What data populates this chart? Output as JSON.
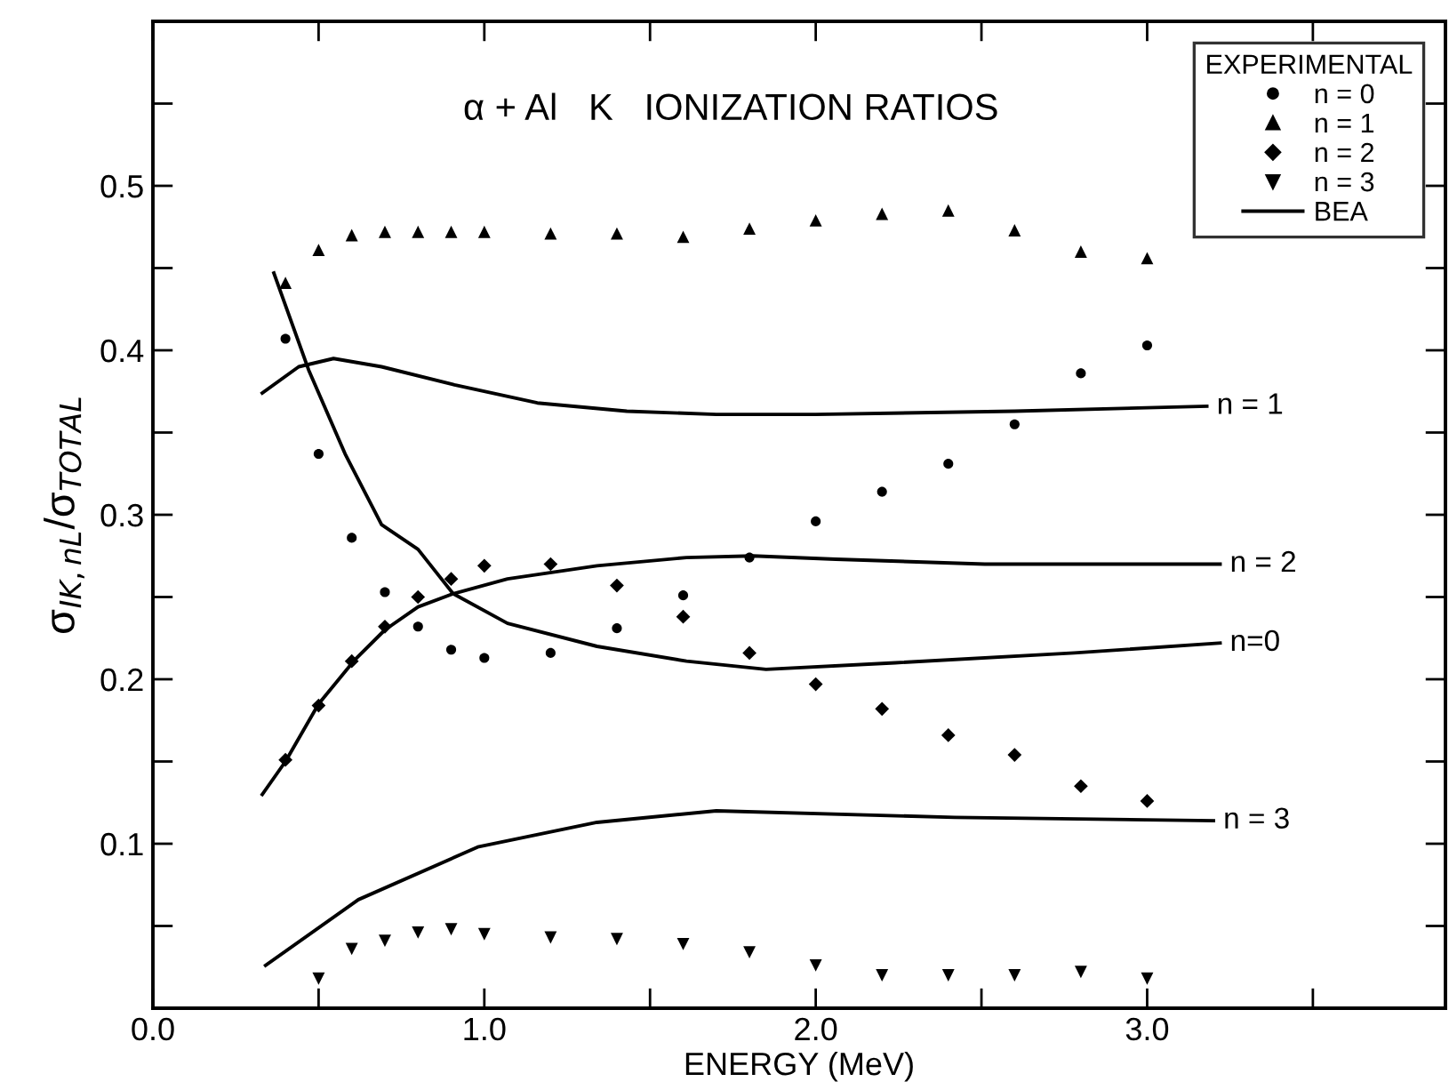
{
  "chart_data": {
    "type": "scatter",
    "title": "α + Al   K   IONIZATION RATIOS",
    "xlabel": "ENERGY (MeV)",
    "ylabel": "σ$_{IK,nL}$/σ$_{TOTAL}$",
    "legend_title": "EXPERIMENTAL",
    "xlim": [
      0,
      3.9
    ],
    "ylim": [
      0,
      0.6
    ],
    "xticks": [
      {
        "value": 0,
        "label": "0.0"
      },
      {
        "value": 0.5,
        "label": null
      },
      {
        "value": 1,
        "label": "1.0"
      },
      {
        "value": 1.5,
        "label": null
      },
      {
        "value": 2,
        "label": "2.0"
      },
      {
        "value": 2.5,
        "label": null
      },
      {
        "value": 3,
        "label": "3.0"
      },
      {
        "value": 3.5,
        "label": null
      }
    ],
    "yticks": [
      {
        "value": 0.05,
        "label": null
      },
      0.1,
      {
        "value": 0.15,
        "label": null
      },
      0.2,
      {
        "value": 0.25,
        "label": null
      },
      0.3,
      {
        "value": 0.35,
        "label": null
      },
      0.4,
      {
        "value": 0.45,
        "label": null
      },
      0.5,
      {
        "value": 0.55,
        "label": null
      }
    ],
    "grid": false,
    "legend": "top right",
    "series": [
      {
        "name": "n = 0",
        "marker": "circle",
        "color": "#000000",
        "x": [
          0.4,
          0.5,
          0.6,
          0.7,
          0.8,
          0.9,
          1.0,
          1.2,
          1.4,
          1.6,
          1.8,
          2.0,
          2.2,
          2.4,
          2.6,
          2.8,
          3.0
        ],
        "values": [
          0.407,
          0.337,
          0.286,
          0.253,
          0.232,
          0.218,
          0.213,
          0.216,
          0.231,
          0.251,
          0.274,
          0.296,
          0.314,
          0.331,
          0.355,
          0.386,
          0.403
        ]
      },
      {
        "name": "n = 1",
        "marker": "triangle",
        "color": "#000000",
        "x": [
          0.4,
          0.5,
          0.6,
          0.7,
          0.8,
          0.9,
          1.0,
          1.2,
          1.4,
          1.6,
          1.8,
          2.0,
          2.2,
          2.4,
          2.6,
          2.8,
          3.0
        ],
        "values": [
          0.441,
          0.461,
          0.47,
          0.472,
          0.472,
          0.472,
          0.472,
          0.471,
          0.471,
          0.469,
          0.474,
          0.479,
          0.483,
          0.485,
          0.473,
          0.46,
          0.456
        ]
      },
      {
        "name": "n = 2",
        "marker": "diamond",
        "color": "#000000",
        "x": [
          0.4,
          0.5,
          0.6,
          0.7,
          0.8,
          0.9,
          1.0,
          1.2,
          1.4,
          1.6,
          1.8,
          2.0,
          2.2,
          2.4,
          2.6,
          2.8,
          3.0
        ],
        "values": [
          0.151,
          0.184,
          0.211,
          0.232,
          0.25,
          0.261,
          0.269,
          0.27,
          0.257,
          0.238,
          0.216,
          0.197,
          0.182,
          0.166,
          0.154,
          0.135,
          0.126
        ]
      },
      {
        "name": "n = 3",
        "marker": "triangle_down",
        "color": "#000000",
        "x": [
          0.5,
          0.6,
          0.7,
          0.8,
          0.9,
          1.0,
          1.2,
          1.4,
          1.6,
          1.8,
          2.0,
          2.2,
          2.4,
          2.6,
          2.8,
          3.0
        ],
        "values": [
          0.018,
          0.036,
          0.041,
          0.046,
          0.048,
          0.045,
          0.043,
          0.042,
          0.039,
          0.034,
          0.026,
          0.02,
          0.02,
          0.02,
          0.022,
          0.018
        ]
      },
      {
        "name": "BEA",
        "type": "line",
        "marker": "none",
        "line_style": "solid",
        "color": "#000000",
        "x": [
          0.33,
          0.44,
          0.545,
          0.69,
          0.91,
          1.16,
          1.43,
          1.7,
          2.0,
          2.6,
          3.18
        ],
        "values": [
          0.374,
          0.39,
          0.395,
          0.39,
          0.379,
          0.368,
          0.363,
          0.361,
          0.361,
          0.363,
          0.366
        ]
      },
      {
        "type": "line",
        "marker": "none",
        "line_style": "solid",
        "color": "#000000",
        "x": [
          0.365,
          0.47,
          0.58,
          0.69,
          0.8,
          0.906,
          1.07,
          1.34,
          1.61,
          1.85,
          2.24,
          2.78,
          3.22
        ],
        "values": [
          0.447,
          0.388,
          0.337,
          0.294,
          0.279,
          0.252,
          0.234,
          0.22,
          0.211,
          0.206,
          0.21,
          0.216,
          0.222
        ]
      },
      {
        "type": "line",
        "marker": "none",
        "line_style": "solid",
        "color": "#000000",
        "x": [
          0.33,
          0.4,
          0.5,
          0.61,
          0.7,
          0.8,
          0.906,
          1.07,
          1.34,
          1.61,
          1.81,
          2.06,
          2.51,
          3.22
        ],
        "values": [
          0.13,
          0.15,
          0.185,
          0.212,
          0.23,
          0.244,
          0.252,
          0.261,
          0.269,
          0.274,
          0.275,
          0.273,
          0.27,
          0.27
        ]
      },
      {
        "type": "line",
        "marker": "none",
        "line_style": "solid",
        "color": "#000000",
        "x": [
          0.34,
          0.62,
          0.98,
          1.34,
          1.7,
          2.42,
          3.2
        ],
        "values": [
          0.026,
          0.066,
          0.098,
          0.113,
          0.12,
          0.116,
          0.114
        ]
      }
    ],
    "annotations": [
      {
        "text": "n = 1",
        "x": 3.18,
        "y": 0.366
      },
      {
        "text": "n = 2",
        "x": 3.22,
        "y": 0.27
      },
      {
        "text": "n=0",
        "x": 3.22,
        "y": 0.222
      },
      {
        "text": "n = 3",
        "x": 3.2,
        "y": 0.114
      }
    ]
  }
}
